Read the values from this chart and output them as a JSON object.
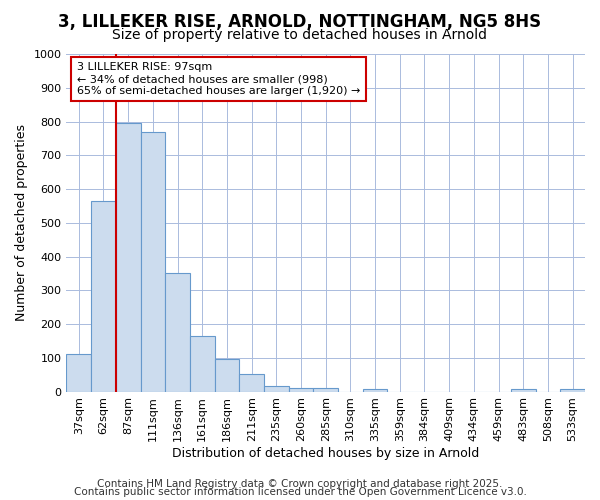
{
  "title_line1": "3, LILLEKER RISE, ARNOLD, NOTTINGHAM, NG5 8HS",
  "title_line2": "Size of property relative to detached houses in Arnold",
  "xlabel": "Distribution of detached houses by size in Arnold",
  "ylabel": "Number of detached properties",
  "categories": [
    "37sqm",
    "62sqm",
    "87sqm",
    "111sqm",
    "136sqm",
    "161sqm",
    "186sqm",
    "211sqm",
    "235sqm",
    "260sqm",
    "285sqm",
    "310sqm",
    "335sqm",
    "359sqm",
    "384sqm",
    "409sqm",
    "434sqm",
    "459sqm",
    "483sqm",
    "508sqm",
    "533sqm"
  ],
  "values": [
    110,
    565,
    795,
    770,
    350,
    165,
    97,
    52,
    17,
    12,
    12,
    0,
    8,
    0,
    0,
    0,
    0,
    0,
    8,
    0,
    8
  ],
  "bar_color": "#ccdcee",
  "bar_edge_color": "#6699cc",
  "red_line_x": 1.5,
  "red_line_color": "#cc0000",
  "annotation_text": "3 LILLEKER RISE: 97sqm\n← 34% of detached houses are smaller (998)\n65% of semi-detached houses are larger (1,920) →",
  "annotation_box_color": "#ffffff",
  "annotation_box_edge": "#cc0000",
  "ylim": [
    0,
    1000
  ],
  "yticks": [
    0,
    100,
    200,
    300,
    400,
    500,
    600,
    700,
    800,
    900,
    1000
  ],
  "footer_line1": "Contains HM Land Registry data © Crown copyright and database right 2025.",
  "footer_line2": "Contains public sector information licensed under the Open Government Licence v3.0.",
  "bg_color": "#ffffff",
  "plot_bg_color": "#ffffff",
  "grid_color": "#aabbdd",
  "title_fontsize": 12,
  "subtitle_fontsize": 10,
  "axis_label_fontsize": 9,
  "tick_fontsize": 8,
  "footer_fontsize": 7.5
}
